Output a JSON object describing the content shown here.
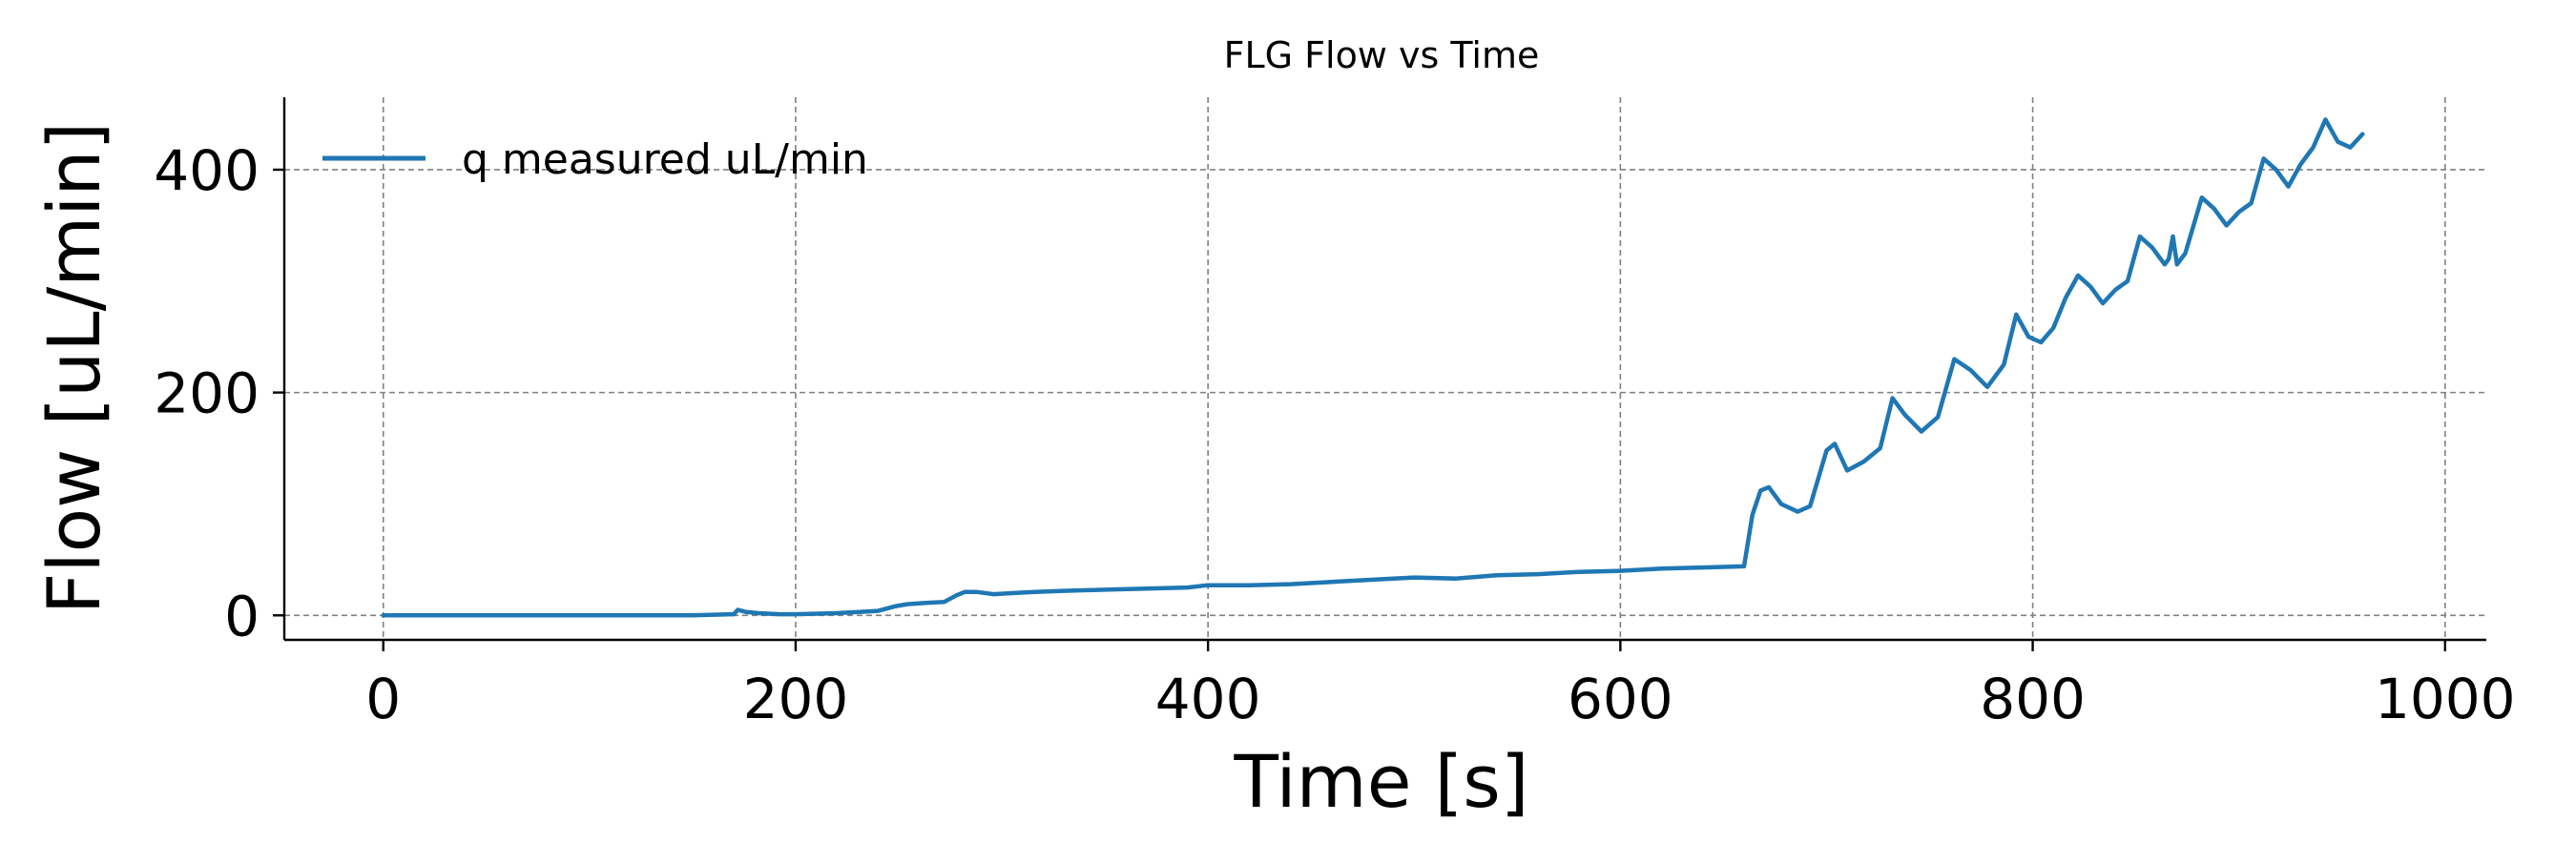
{
  "chart_data": {
    "type": "line",
    "title": "FLG Flow vs Time",
    "xlabel": "Time [s]",
    "ylabel": "Flow [uL/min]",
    "xlim": [
      -48,
      1020
    ],
    "ylim": [
      -22,
      465
    ],
    "xticks": [
      0,
      200,
      400,
      600,
      800,
      1000
    ],
    "xtick_labels": [
      "0",
      "200",
      "400",
      "600",
      "800",
      "1000"
    ],
    "yticks": [
      0,
      200,
      400
    ],
    "ytick_labels": [
      "0",
      "200",
      "400"
    ],
    "grid": true,
    "legend_position": "top-left",
    "series": [
      {
        "name": "q measured uL/min",
        "color": "#1f77b4",
        "x": [
          0,
          50,
          100,
          150,
          170,
          172,
          176,
          182,
          192,
          200,
          220,
          240,
          248,
          254,
          262,
          272,
          278,
          282,
          288,
          296,
          306,
          316,
          330,
          350,
          370,
          390,
          400,
          420,
          440,
          460,
          480,
          500,
          520,
          540,
          560,
          580,
          600,
          620,
          640,
          660,
          664,
          668,
          672,
          678,
          686,
          692,
          700,
          704,
          710,
          718,
          726,
          732,
          738,
          746,
          754,
          762,
          770,
          778,
          786,
          792,
          798,
          804,
          810,
          816,
          822,
          828,
          834,
          840,
          846,
          852,
          858,
          864,
          866,
          868,
          870,
          874,
          882,
          888,
          894,
          900,
          906,
          912,
          918,
          924,
          930,
          936,
          942,
          948,
          954,
          960
        ],
        "y": [
          0,
          0,
          0,
          0,
          1,
          5,
          3,
          2,
          1,
          1,
          2,
          4,
          8,
          10,
          11,
          12,
          18,
          21,
          21,
          19,
          20,
          21,
          22,
          23,
          24,
          25,
          27,
          27,
          28,
          30,
          32,
          34,
          33,
          36,
          37,
          39,
          40,
          42,
          43,
          44,
          90,
          112,
          115,
          100,
          93,
          98,
          148,
          154,
          130,
          138,
          150,
          195,
          180,
          165,
          178,
          230,
          220,
          205,
          225,
          270,
          250,
          245,
          258,
          285,
          305,
          295,
          280,
          292,
          300,
          340,
          330,
          315,
          320,
          340,
          315,
          325,
          375,
          365,
          350,
          362,
          370,
          410,
          400,
          385,
          405,
          420,
          445,
          425,
          420,
          432
        ]
      }
    ]
  }
}
